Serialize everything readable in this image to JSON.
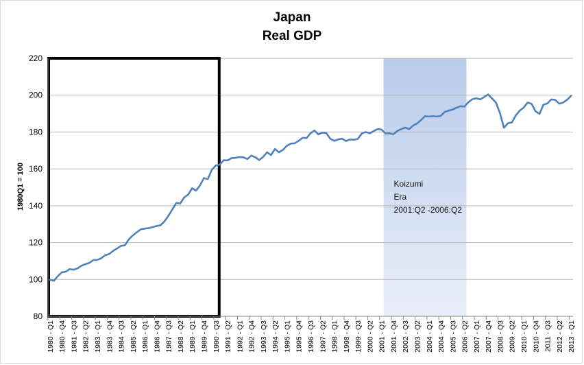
{
  "chart_data": {
    "type": "line",
    "title": "Japan",
    "subtitle": "Real GDP",
    "xlabel": "",
    "ylabel": "1980Q1 = 100",
    "ylim": [
      80,
      220
    ],
    "yticks": [
      80,
      100,
      120,
      140,
      160,
      180,
      200,
      220
    ],
    "grid": "horizontal",
    "legend": "none",
    "colors": {
      "line": "#4f81bd",
      "shade": "#b8cbe9",
      "box": "#000000",
      "grid": "#b7b7b7"
    },
    "x_tick_labels": [
      "1980 - Q1",
      "1980 - Q4",
      "1981 - Q3",
      "1982 - Q2",
      "1983 - Q1",
      "1983 - Q4",
      "1984 - Q3",
      "1985 - Q2",
      "1986 - Q1",
      "1986 - Q4",
      "1987 - Q3",
      "1988 - Q2",
      "1989 - Q1",
      "1989 - Q4",
      "1990 - Q3",
      "1991 - Q2",
      "1992 - Q1",
      "1992 - Q4",
      "1993 - Q3",
      "1994 - Q2",
      "1995 - Q1",
      "1995 - Q4",
      "1996 - Q3",
      "1997 - Q2",
      "1998 - Q1",
      "1998 - Q4",
      "1999 - Q3",
      "2000 - Q2",
      "2001 - Q1",
      "2001 - Q4",
      "2002 - Q3",
      "2003 - Q2",
      "2004 - Q1",
      "2004 - Q4",
      "2005 - Q3",
      "2006 - Q2",
      "2007 - Q1",
      "2007 - Q4",
      "2008 - Q3",
      "2009 - Q2",
      "2010 - Q1",
      "2010 - Q4",
      "2011 - Q3",
      "2012 - Q2",
      "2013 - Q1"
    ],
    "series": [
      {
        "name": "",
        "x_start": "1980 - Q1",
        "values": [
          99.8,
          99.3,
          101.8,
          103.8,
          104.2,
          105.6,
          105.3,
          106.0,
          107.5,
          108.3,
          109.0,
          110.5,
          110.6,
          111.5,
          113.2,
          113.8,
          115.5,
          116.8,
          118.2,
          118.6,
          121.8,
          123.9,
          125.6,
          127.2,
          127.6,
          127.8,
          128.4,
          129.0,
          129.4,
          131.5,
          134.5,
          138.0,
          141.5,
          141.2,
          144.5,
          146.0,
          149.5,
          148.2,
          151.0,
          155.0,
          154.5,
          159.5,
          161.8,
          162.3,
          164.7,
          164.6,
          165.8,
          166.0,
          166.4,
          166.3,
          165.3,
          167.2,
          166.3,
          164.8,
          166.5,
          169.0,
          167.5,
          170.8,
          169.0,
          170.3,
          172.5,
          173.7,
          173.9,
          175.2,
          176.9,
          176.7,
          179.3,
          180.8,
          178.7,
          179.7,
          179.4,
          176.4,
          175.2,
          176.0,
          176.4,
          175.1,
          176.0,
          175.8,
          176.3,
          179.2,
          180.0,
          179.3,
          180.5,
          181.6,
          181.3,
          179.2,
          179.3,
          178.8,
          180.6,
          181.6,
          182.4,
          181.6,
          183.5,
          184.7,
          186.5,
          188.6,
          188.4,
          188.6,
          188.4,
          188.8,
          190.9,
          191.6,
          192.2,
          193.2,
          194.0,
          193.8,
          196.2,
          197.8,
          198.3,
          197.7,
          199.0,
          200.4,
          198.2,
          195.9,
          190.2,
          182.3,
          184.8,
          185.2,
          189.0,
          191.6,
          193.3,
          196.0,
          195.3,
          191.3,
          189.8,
          194.8,
          195.5,
          197.7,
          197.4,
          195.4,
          196.0,
          197.5,
          199.6
        ]
      }
    ],
    "annotations": [
      {
        "kind": "rectangle",
        "label": "",
        "from": "1980 - Q1",
        "to": "1990 - Q3",
        "ymin": 80,
        "ymax": 220
      },
      {
        "kind": "shaded_region",
        "from": "2001 - Q2",
        "to": "2006 - Q2",
        "lines": [
          "Koizumi",
          "Era",
          "2001:Q2 -2006:Q2"
        ]
      }
    ]
  }
}
